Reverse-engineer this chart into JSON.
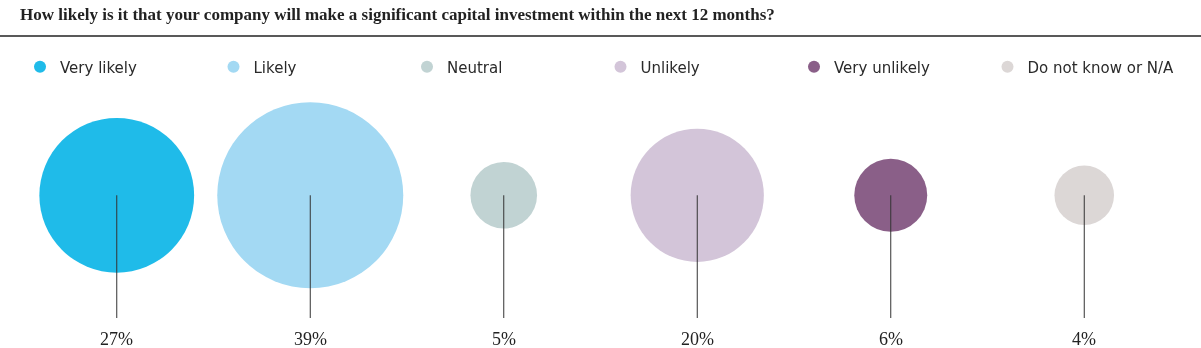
{
  "chart_data": {
    "type": "other",
    "title": "How likely is it that your company will make a significant capital investment within the next 12 months?",
    "categories": [
      "Very likely",
      "Likely",
      "Neutral",
      "Unlikely",
      "Very unlikely",
      "Do not know or N/A"
    ],
    "values": [
      27,
      39,
      5,
      20,
      6,
      4
    ],
    "value_labels": [
      "27%",
      "39%",
      "5%",
      "20%",
      "6%",
      "4%"
    ],
    "colors": [
      "#1fbbe9",
      "#a3d9f3",
      "#c1d3d3",
      "#d3c5d9",
      "#8a5f88",
      "#dcd7d6"
    ]
  }
}
